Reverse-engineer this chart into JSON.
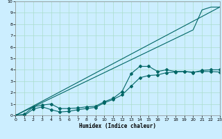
{
  "xlabel": "Humidex (Indice chaleur)",
  "bg_color": "#cceeff",
  "line_color": "#006666",
  "grid_color": "#aaddcc",
  "x_ticks": [
    0,
    1,
    2,
    3,
    4,
    5,
    6,
    7,
    8,
    9,
    10,
    11,
    12,
    13,
    14,
    15,
    16,
    17,
    18,
    19,
    20,
    21,
    22,
    23
  ],
  "y_ticks": [
    0,
    1,
    2,
    3,
    4,
    5,
    6,
    7,
    8,
    9,
    10
  ],
  "xlim": [
    0,
    23
  ],
  "ylim": [
    0,
    10
  ],
  "line1_x": [
    0,
    1,
    2,
    3,
    4,
    5,
    6,
    7,
    8,
    9,
    10,
    11,
    12,
    13,
    14,
    15,
    16,
    17,
    18,
    19,
    20,
    21,
    22,
    23
  ],
  "line1_y": [
    0,
    0.1,
    0.75,
    0.9,
    1.0,
    0.6,
    0.6,
    0.65,
    0.75,
    0.8,
    1.2,
    1.5,
    2.1,
    3.65,
    4.3,
    4.3,
    3.85,
    4.0,
    3.85,
    3.85,
    3.75,
    3.95,
    4.0,
    4.0
  ],
  "line2_x": [
    0,
    1,
    2,
    3,
    4,
    5,
    6,
    7,
    8,
    9,
    10,
    11,
    12,
    13,
    14,
    15,
    16,
    17,
    18,
    19,
    20,
    21,
    22,
    23
  ],
  "line2_y": [
    0,
    0.0,
    0.55,
    0.75,
    0.5,
    0.3,
    0.35,
    0.5,
    0.6,
    0.7,
    1.1,
    1.4,
    1.8,
    2.55,
    3.3,
    3.5,
    3.55,
    3.75,
    3.8,
    3.85,
    3.8,
    3.85,
    3.85,
    3.8
  ],
  "line3_x": [
    0,
    23
  ],
  "line3_y": [
    0,
    9.5
  ],
  "line4_x": [
    0,
    20,
    21,
    22,
    23
  ],
  "line4_y": [
    0,
    7.5,
    9.25,
    9.5,
    9.5
  ]
}
